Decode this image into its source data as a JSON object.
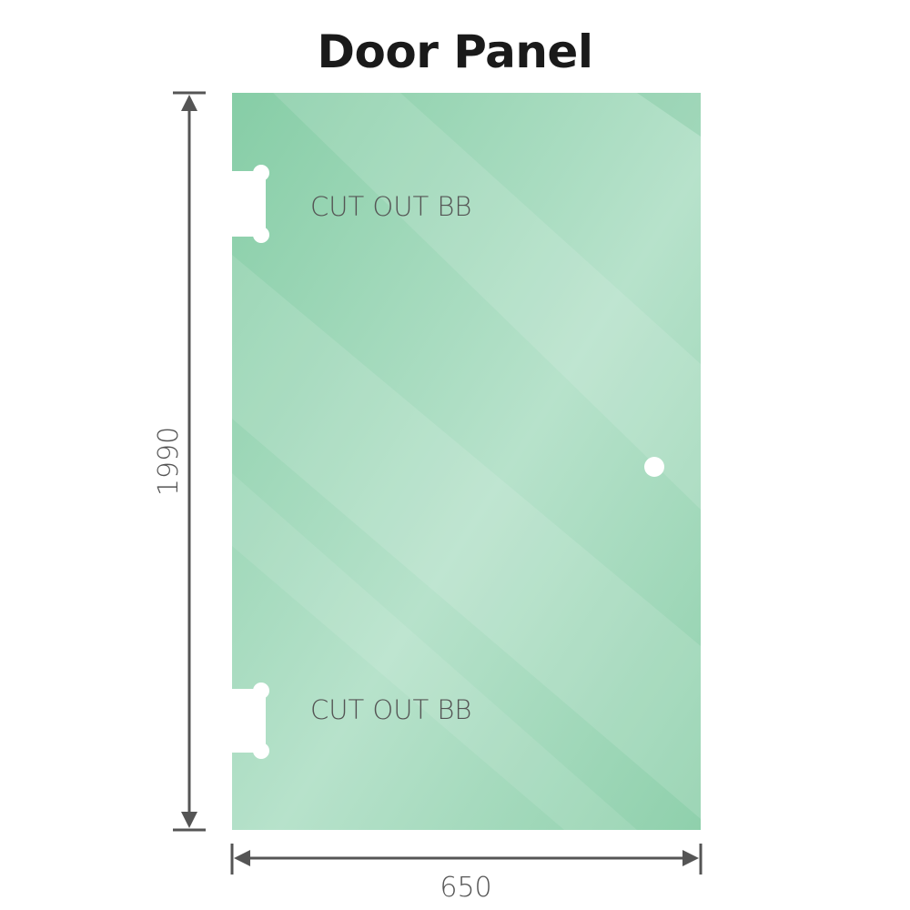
{
  "title": "Door Panel",
  "panel": {
    "height_label": "1990",
    "width_label": "650",
    "cutout_labels": [
      "CUT OUT BB",
      "CUT OUT BB"
    ],
    "glass_color": "#8fd0ac"
  }
}
